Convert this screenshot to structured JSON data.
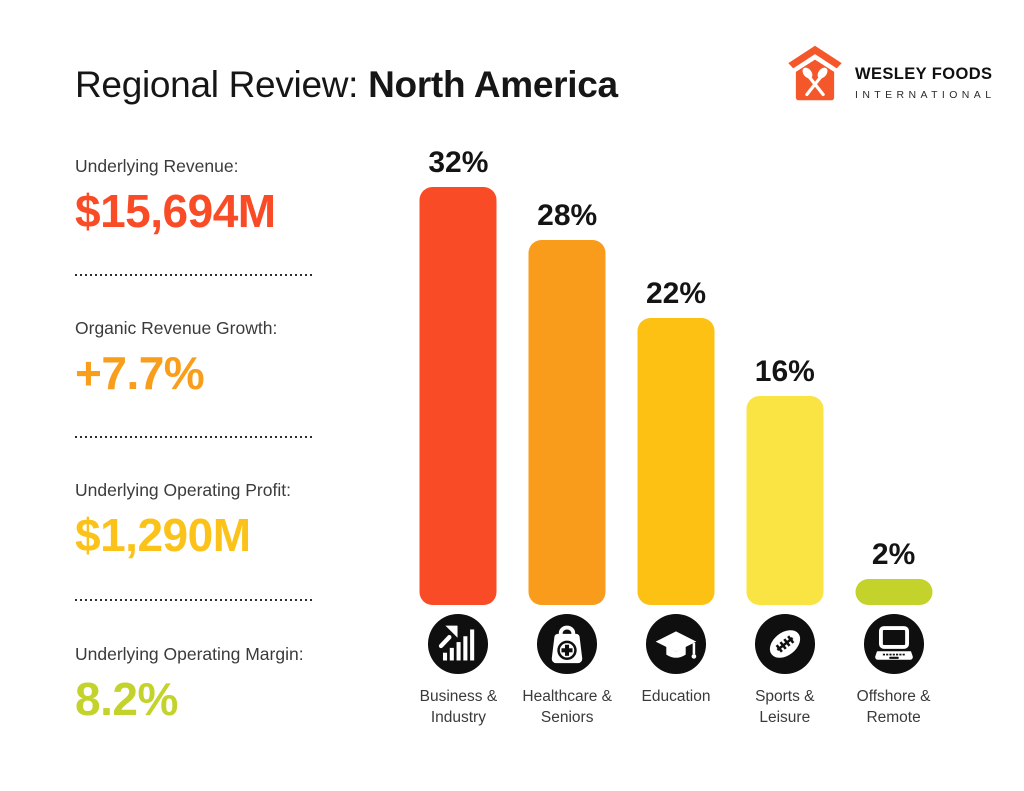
{
  "header": {
    "title_regular": "Regional Review: ",
    "title_bold": "North America"
  },
  "logo": {
    "name": "WESLEY FOODS",
    "subtitle": "INTERNATIONAL",
    "icon": "house-cutlery-icon",
    "brand_color": "#F4582A"
  },
  "stats": [
    {
      "label": "Underlying Revenue:",
      "value": "$15,694M",
      "color": "#F94C26"
    },
    {
      "label": "Organic Revenue Growth:",
      "value": "+7.7%",
      "color": "#F99E1B"
    },
    {
      "label": "Underlying Operating Profit:",
      "value": "$1,290M",
      "color": "#FBC31A"
    },
    {
      "label": "Underlying Operating Margin:",
      "value": "8.2%",
      "color": "#C3D32B"
    }
  ],
  "chart_data": {
    "type": "bar",
    "title": "Regional Review: North America",
    "categories": [
      "Business & Industry",
      "Healthcare & Seniors",
      "Education",
      "Sports & Leisure",
      "Offshore & Remote"
    ],
    "values": [
      32,
      28,
      22,
      16,
      2
    ],
    "value_labels": [
      "32%",
      "28%",
      "22%",
      "16%",
      "2%"
    ],
    "display_labels": [
      "Business &\nIndustry",
      "Healthcare &\nSeniors",
      "Education",
      "Sports &\nLeisure",
      "Offshore &\nRemote"
    ],
    "bar_colors": [
      "#F94C26",
      "#FA9C1B",
      "#FCC113",
      "#F9E443",
      "#C3D32B"
    ],
    "icons": [
      "growth-chart-icon",
      "first-aid-bag-icon",
      "graduation-cap-icon",
      "rugby-ball-icon",
      "laptop-icon"
    ],
    "unit": "%",
    "ylim": [
      0,
      32
    ],
    "grid": false,
    "legend": false
  }
}
